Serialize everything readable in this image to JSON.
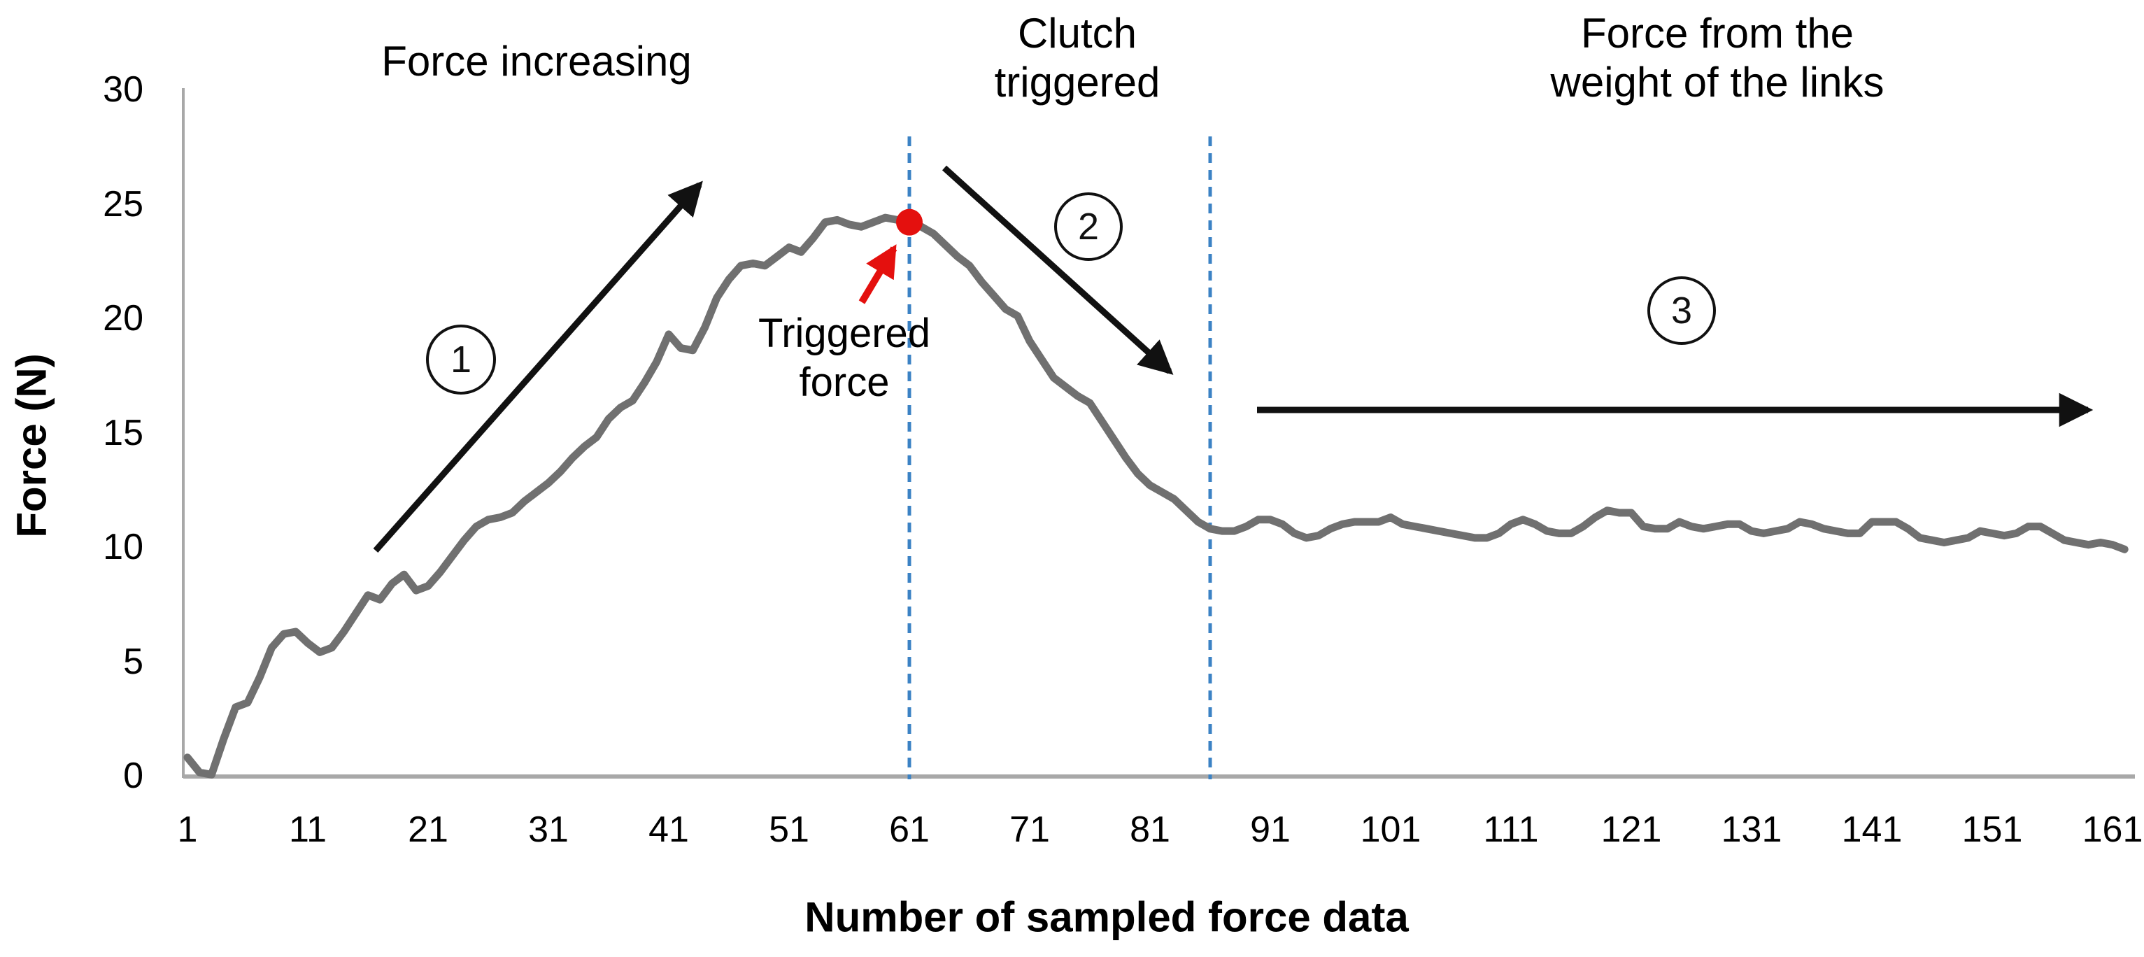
{
  "chart_data": {
    "type": "line",
    "xlabel": "Number of sampled force data",
    "ylabel": "Force (N)",
    "x_ticks": [
      1,
      11,
      21,
      31,
      41,
      51,
      61,
      71,
      81,
      91,
      101,
      111,
      121,
      131,
      141,
      151,
      161
    ],
    "y_ticks": [
      0,
      5,
      10,
      15,
      20,
      25,
      30
    ],
    "xlim": [
      1,
      163
    ],
    "ylim": [
      0,
      30
    ],
    "grid": false,
    "legend": false,
    "series": [
      {
        "name": "sampled force",
        "color": "#707070",
        "x_start": 1,
        "values": [
          0.8,
          0.15,
          0.05,
          1.6,
          3.0,
          3.2,
          4.3,
          5.6,
          6.2,
          6.3,
          5.8,
          5.4,
          5.6,
          6.3,
          7.1,
          7.9,
          7.7,
          8.4,
          8.8,
          8.1,
          8.3,
          8.9,
          9.6,
          10.3,
          10.9,
          11.2,
          11.3,
          11.5,
          12.0,
          12.4,
          12.8,
          13.3,
          13.9,
          14.4,
          14.8,
          15.6,
          16.1,
          16.4,
          17.2,
          18.1,
          19.3,
          18.7,
          18.6,
          19.6,
          20.9,
          21.7,
          22.3,
          22.4,
          22.3,
          22.7,
          23.1,
          22.9,
          23.5,
          24.2,
          24.3,
          24.1,
          24.0,
          24.2,
          24.4,
          24.3,
          24.2,
          24.0,
          23.7,
          23.2,
          22.7,
          22.3,
          21.6,
          21.0,
          20.4,
          20.1,
          19.0,
          18.2,
          17.4,
          17.0,
          16.6,
          16.3,
          15.5,
          14.7,
          13.9,
          13.2,
          12.7,
          12.4,
          12.1,
          11.6,
          11.1,
          10.8,
          10.7,
          10.7,
          10.9,
          11.2,
          11.2,
          11.0,
          10.6,
          10.4,
          10.5,
          10.8,
          11.0,
          11.1,
          11.1,
          11.1,
          11.3,
          11.0,
          10.9,
          10.8,
          10.7,
          10.6,
          10.5,
          10.4,
          10.4,
          10.6,
          11.0,
          11.2,
          11.0,
          10.7,
          10.6,
          10.6,
          10.9,
          11.3,
          11.6,
          11.5,
          11.5,
          10.9,
          10.8,
          10.8,
          11.1,
          10.9,
          10.8,
          10.9,
          11.0,
          11.0,
          10.7,
          10.6,
          10.7,
          10.8,
          11.1,
          11.0,
          10.8,
          10.7,
          10.6,
          10.6,
          11.1,
          11.1,
          11.1,
          10.8,
          10.4,
          10.3,
          10.2,
          10.3,
          10.4,
          10.7,
          10.6,
          10.5,
          10.6,
          10.9,
          10.9,
          10.6,
          10.3,
          10.2,
          10.1,
          10.2,
          10.1,
          9.9
        ]
      }
    ],
    "triggered_point": {
      "x": 61,
      "y": 24.2,
      "color": "#e4100e"
    },
    "dashed_boundaries": {
      "x_values": [
        61,
        86
      ],
      "color": "#3b82c4"
    }
  },
  "annotations": {
    "stage1": {
      "number": "1",
      "label": "Force increasing"
    },
    "stage2": {
      "number": "2",
      "label_line1": "Clutch",
      "label_line2": "triggered"
    },
    "stage3": {
      "number": "3",
      "label_line1": "Force from the",
      "label_line2": "weight of the links"
    },
    "triggered": {
      "line1": "Triggered",
      "line2": "force"
    }
  },
  "colors": {
    "curve": "#707070",
    "axis": "#a8a8a8",
    "dashed_line": "#3b82c4",
    "trigger_red": "#e4100e",
    "text": "#000000"
  }
}
